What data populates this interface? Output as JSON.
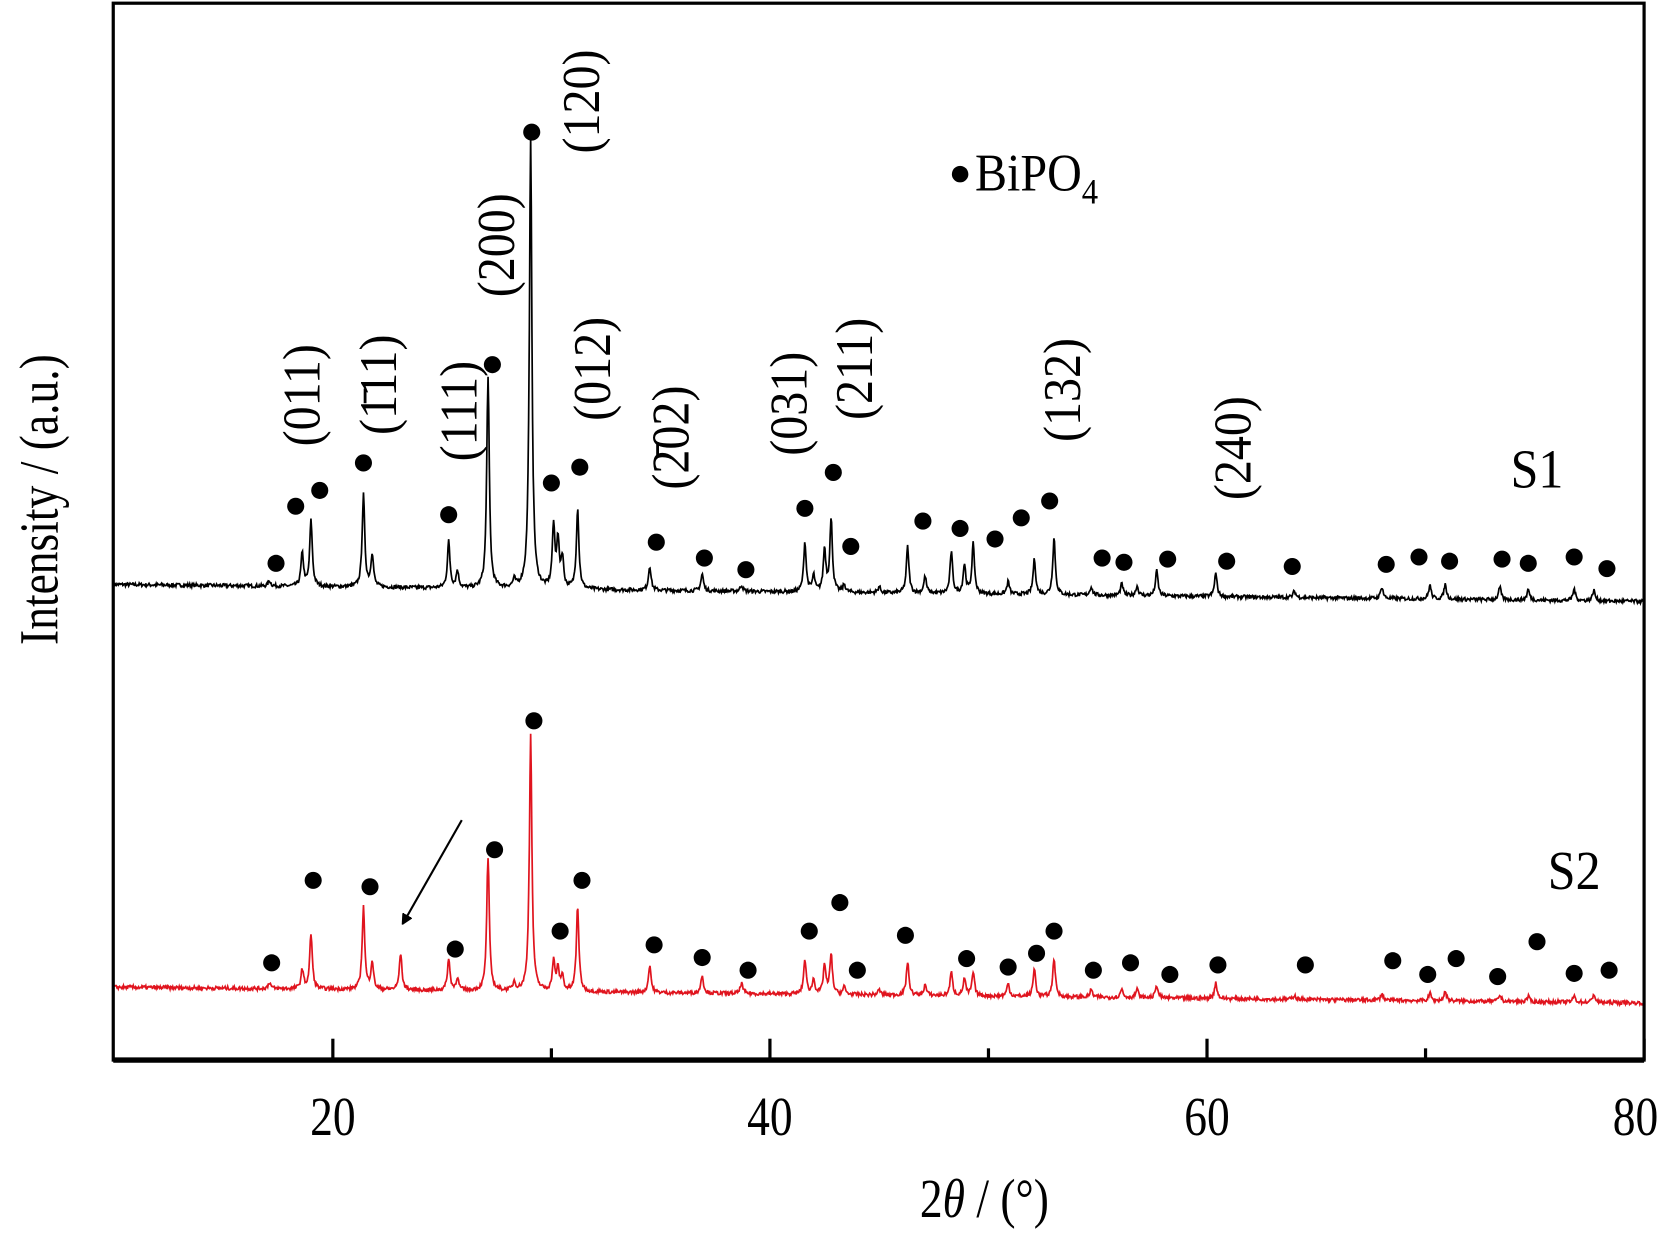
{
  "chart_data": {
    "type": "line",
    "title": "",
    "xlabel": "2θ / (°)",
    "xlabel_parts": {
      "prefix": "2",
      "theta": "θ",
      "suffix": " / (°)"
    },
    "ylabel": "Intensity / (a.u.)",
    "xlim": [
      10,
      80
    ],
    "ylim": [
      0,
      100
    ],
    "x_major_ticks": [
      20,
      40,
      60,
      80
    ],
    "x_tick_labels": [
      "20",
      "40",
      "60",
      "80"
    ],
    "x_minor_ticks": [
      30,
      50,
      70
    ],
    "grid": false,
    "legend": {
      "marker": "●",
      "text": "BiPO",
      "subscript": "4",
      "position": [
        48.7,
        84
      ]
    },
    "series": [
      {
        "name": "S1",
        "color": "#000000",
        "label_position": [
          75.1,
          56
        ],
        "baseline": [
          45.0,
          43.4
        ],
        "peaks": [
          [
            17.1,
            0.5
          ],
          [
            18.6,
            3.1
          ],
          [
            19.0,
            6.2
          ],
          [
            21.4,
            8.7
          ],
          [
            21.8,
            3.1
          ],
          [
            25.3,
            4.4
          ],
          [
            25.7,
            1.6
          ],
          [
            27.1,
            19.9
          ],
          [
            28.3,
            0.7
          ],
          [
            29.05,
            42.6
          ],
          [
            30.1,
            5.8
          ],
          [
            30.3,
            4.3
          ],
          [
            30.5,
            2.8
          ],
          [
            31.2,
            7.6
          ],
          [
            34.5,
            2.3
          ],
          [
            36.9,
            1.6
          ],
          [
            38.7,
            0.6
          ],
          [
            41.6,
            4.7
          ],
          [
            42.0,
            1.5
          ],
          [
            42.5,
            4.0
          ],
          [
            42.8,
            6.8
          ],
          [
            43.4,
            0.7
          ],
          [
            45.0,
            0.6
          ],
          [
            46.3,
            4.4
          ],
          [
            47.1,
            1.6
          ],
          [
            48.3,
            3.9
          ],
          [
            48.9,
            2.7
          ],
          [
            49.3,
            4.7
          ],
          [
            50.9,
            1.2
          ],
          [
            52.1,
            3.3
          ],
          [
            53.0,
            5.4
          ],
          [
            54.7,
            0.8
          ],
          [
            56.1,
            1.1
          ],
          [
            56.8,
            0.9
          ],
          [
            57.7,
            2.4
          ],
          [
            60.4,
            2.2
          ],
          [
            64.0,
            0.6
          ],
          [
            68.0,
            1.1
          ],
          [
            70.2,
            1.3
          ],
          [
            70.9,
            1.4
          ],
          [
            73.4,
            1.2
          ],
          [
            74.7,
            1.0
          ],
          [
            76.8,
            1.1
          ],
          [
            77.7,
            1.0
          ]
        ],
        "markers": [
          [
            17.4,
            47.0
          ],
          [
            18.3,
            52.4
          ],
          [
            19.4,
            53.9
          ],
          [
            21.4,
            56.5
          ],
          [
            25.3,
            51.6
          ],
          [
            27.3,
            65.8
          ],
          [
            29.1,
            87.8
          ],
          [
            30.0,
            54.6
          ],
          [
            31.3,
            56.1
          ],
          [
            34.8,
            49.0
          ],
          [
            37.0,
            47.5
          ],
          [
            38.9,
            46.4
          ],
          [
            41.6,
            52.2
          ],
          [
            42.9,
            55.6
          ],
          [
            43.7,
            48.6
          ],
          [
            47.0,
            51.0
          ],
          [
            48.7,
            50.3
          ],
          [
            50.3,
            49.3
          ],
          [
            51.5,
            51.3
          ],
          [
            52.8,
            52.9
          ],
          [
            55.2,
            47.5
          ],
          [
            56.2,
            47.1
          ],
          [
            58.2,
            47.4
          ],
          [
            60.9,
            47.2
          ],
          [
            63.9,
            46.7
          ],
          [
            68.2,
            46.9
          ],
          [
            69.7,
            47.6
          ],
          [
            71.1,
            47.2
          ],
          [
            73.5,
            47.4
          ],
          [
            74.7,
            47.0
          ],
          [
            76.8,
            47.6
          ],
          [
            78.3,
            46.5
          ]
        ]
      },
      {
        "name": "S2",
        "color": "#e0141e",
        "label_position": [
          76.8,
          18
        ],
        "baseline": [
          6.9,
          5.4
        ],
        "peaks": [
          [
            17.1,
            0.6
          ],
          [
            18.6,
            1.8
          ],
          [
            19.0,
            5.2
          ],
          [
            21.4,
            7.8
          ],
          [
            21.8,
            2.6
          ],
          [
            23.1,
            3.5
          ],
          [
            25.3,
            3.0
          ],
          [
            25.7,
            1.2
          ],
          [
            27.1,
            12.6
          ],
          [
            28.3,
            0.8
          ],
          [
            29.05,
            24.2
          ],
          [
            30.1,
            2.8
          ],
          [
            30.3,
            2.0
          ],
          [
            30.5,
            1.4
          ],
          [
            31.2,
            8.1
          ],
          [
            34.5,
            2.6
          ],
          [
            36.9,
            1.7
          ],
          [
            38.7,
            1.0
          ],
          [
            41.6,
            3.3
          ],
          [
            42.0,
            1.4
          ],
          [
            42.5,
            2.8
          ],
          [
            42.8,
            3.7
          ],
          [
            43.4,
            0.7
          ],
          [
            45.0,
            0.5
          ],
          [
            46.3,
            3.2
          ],
          [
            47.1,
            1.0
          ],
          [
            48.3,
            2.2
          ],
          [
            48.9,
            1.6
          ],
          [
            49.3,
            2.2
          ],
          [
            50.9,
            1.2
          ],
          [
            52.1,
            2.6
          ],
          [
            53.0,
            3.7
          ],
          [
            54.7,
            0.7
          ],
          [
            56.1,
            0.8
          ],
          [
            56.8,
            0.8
          ],
          [
            57.7,
            1.2
          ],
          [
            60.4,
            1.5
          ],
          [
            64.0,
            0.4
          ],
          [
            68.0,
            0.6
          ],
          [
            70.2,
            0.7
          ],
          [
            70.9,
            0.9
          ],
          [
            73.4,
            0.6
          ],
          [
            74.7,
            0.5
          ],
          [
            76.8,
            0.6
          ],
          [
            77.7,
            0.8
          ]
        ],
        "markers": [
          [
            17.2,
            9.2
          ],
          [
            19.1,
            17.0
          ],
          [
            21.7,
            16.4
          ],
          [
            25.6,
            10.5
          ],
          [
            27.4,
            19.9
          ],
          [
            29.2,
            32.1
          ],
          [
            30.4,
            12.2
          ],
          [
            31.4,
            17.0
          ],
          [
            34.7,
            10.9
          ],
          [
            36.9,
            9.7
          ],
          [
            39.0,
            8.5
          ],
          [
            41.8,
            12.2
          ],
          [
            43.2,
            14.9
          ],
          [
            44.0,
            8.5
          ],
          [
            46.2,
            11.8
          ],
          [
            49.0,
            9.6
          ],
          [
            50.9,
            8.8
          ],
          [
            52.2,
            10.1
          ],
          [
            53.0,
            12.2
          ],
          [
            54.8,
            8.5
          ],
          [
            56.5,
            9.2
          ],
          [
            58.3,
            8.1
          ],
          [
            60.5,
            9.0
          ],
          [
            64.5,
            9.0
          ],
          [
            68.5,
            9.4
          ],
          [
            70.1,
            8.1
          ],
          [
            71.4,
            9.6
          ],
          [
            73.3,
            7.9
          ],
          [
            75.1,
            11.2
          ],
          [
            76.8,
            8.2
          ],
          [
            78.4,
            8.5
          ]
        ]
      }
    ],
    "annotations": [
      {
        "text": "(011)",
        "x": 18.6,
        "y": 62.9
      },
      {
        "text": "(1̄11)",
        "x": 22.1,
        "y": 63.9
      },
      {
        "text": "(111)",
        "x": 25.8,
        "y": 61.4
      },
      {
        "text": "(200)",
        "x": 27.5,
        "y": 77.1
      },
      {
        "text": "(120)",
        "x": 31.4,
        "y": 90.7
      },
      {
        "text": "(012)",
        "x": 31.9,
        "y": 65.4
      },
      {
        "text": "(2̄02)",
        "x": 35.5,
        "y": 58.9
      },
      {
        "text": "(031)",
        "x": 40.9,
        "y": 62.1
      },
      {
        "text": "(211)",
        "x": 43.9,
        "y": 65.4
      },
      {
        "text": "(132)",
        "x": 53.4,
        "y": 63.4
      },
      {
        "text": "(240)",
        "x": 61.2,
        "y": 57.9
      }
    ],
    "arrow": {
      "from": [
        25.9,
        22.7
      ],
      "to": [
        23.2,
        12.9
      ]
    }
  }
}
